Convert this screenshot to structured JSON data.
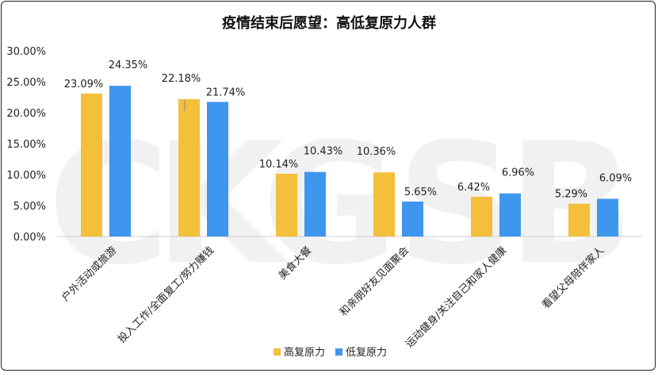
{
  "chart_data": {
    "type": "bar",
    "title": "疫情结束后愿望：高低复原力人群",
    "categories": [
      "户外活动或旅游",
      "投入工作/全面复工/努力赚钱",
      "美食大餐",
      "和亲朋好友见面聚会",
      "运动健身/关注自己和家人健康",
      "看望父母陪伴家人"
    ],
    "series": [
      {
        "name": "高复原力",
        "color": "#F4BF3B",
        "values": [
          23.09,
          22.18,
          10.14,
          10.36,
          6.42,
          5.29
        ]
      },
      {
        "name": "低复原力",
        "color": "#3E96EE",
        "values": [
          24.35,
          21.74,
          10.43,
          5.65,
          6.96,
          6.09
        ]
      }
    ],
    "ylim": [
      0,
      30
    ],
    "yticks": [
      "0.00%",
      "5.00%",
      "10.00%",
      "15.00%",
      "20.00%",
      "25.00%",
      "30.00%"
    ],
    "grid": false,
    "legend": "bottom"
  },
  "watermark": "CKGSB"
}
